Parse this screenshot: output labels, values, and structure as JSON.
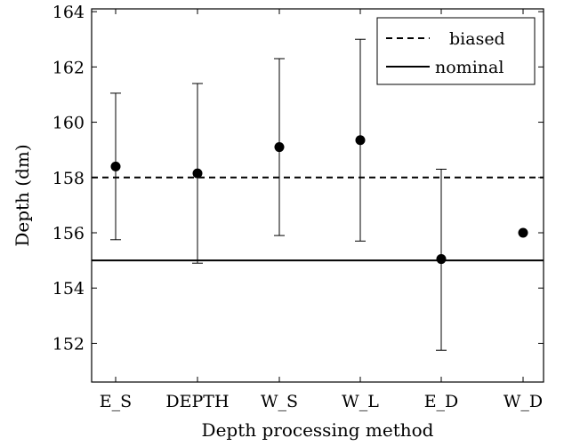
{
  "chart_data": {
    "type": "scatter",
    "title": "",
    "xlabel": "Depth processing method",
    "ylabel": "Depth (dm)",
    "categories": [
      "E_S",
      "DEPTH",
      "W_S",
      "W_L",
      "E_D",
      "W_D"
    ],
    "category_labels": [
      "E_S",
      "DEPTH",
      "W_S",
      "W_L",
      "E_D",
      "W_D"
    ],
    "ylim": [
      150.6,
      164.1
    ],
    "yticks": [
      152,
      154,
      156,
      158,
      160,
      162,
      164
    ],
    "ytick_labels": [
      "152",
      "154",
      "156",
      "158",
      "160",
      "162",
      "164"
    ],
    "grid": false,
    "legend_position": "top-right",
    "points": [
      {
        "category": "E_S",
        "value": 158.4,
        "low": 155.75,
        "high": 161.05
      },
      {
        "category": "DEPTH",
        "value": 158.15,
        "low": 154.9,
        "high": 161.4
      },
      {
        "category": "W_S",
        "value": 159.1,
        "low": 155.9,
        "high": 162.3
      },
      {
        "category": "W_L",
        "value": 159.35,
        "low": 155.7,
        "high": 163.0
      },
      {
        "category": "E_D",
        "value": 155.05,
        "low": 151.75,
        "high": 158.3
      },
      {
        "category": "W_D",
        "value": 156.0,
        "low": null,
        "high": null
      }
    ],
    "reference_lines": [
      {
        "name": "biased",
        "value": 158,
        "style": "dashed"
      },
      {
        "name": "nominal",
        "value": 155,
        "style": "solid"
      }
    ],
    "colors": {
      "marks": "#000000"
    }
  }
}
